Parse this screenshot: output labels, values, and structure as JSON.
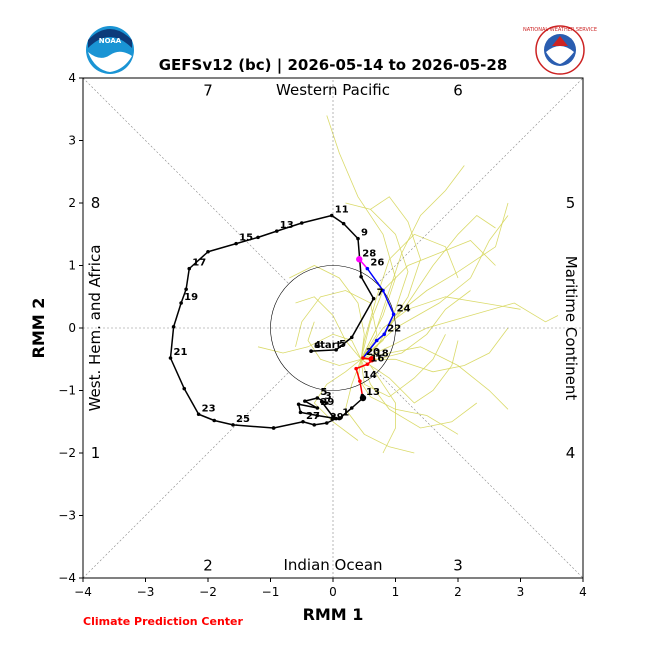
{
  "header": {
    "title": "GEFSv12 (bc) | 2026-05-14 to 2026-05-28",
    "left_logo": "noaa-logo",
    "left_logo_text": "NOAA",
    "right_logo": "national-weather-service-logo",
    "right_logo_text": "NATIONAL WEATHER SERVICE"
  },
  "footer": {
    "credit": "Climate Prediction Center",
    "credit_color": "#ff0000"
  },
  "chart_data": {
    "type": "line",
    "title": "GEFSv12 (bc) | 2026-05-14 to 2026-05-28",
    "xlabel": "RMM 1",
    "ylabel": "RMM 2",
    "xlim": [
      -4,
      4
    ],
    "ylim": [
      -4,
      4
    ],
    "xticks": [
      "−4",
      "−3",
      "−2",
      "−1",
      "0",
      "1",
      "2",
      "3",
      "4"
    ],
    "yticks": [
      "−4",
      "−3",
      "−2",
      "−1",
      "0",
      "1",
      "2",
      "3",
      "4"
    ],
    "unit_circle_radius": 1,
    "region_labels": {
      "top": "Western Pacific",
      "bottom": "Indian Ocean",
      "left": "West. Hem. and Africa",
      "right": "Maritime Continent"
    },
    "phase_labels": [
      {
        "phase": "1",
        "x": -3.8,
        "y": -2.0
      },
      {
        "phase": "2",
        "x": -2.0,
        "y": -3.8
      },
      {
        "phase": "3",
        "x": 2.0,
        "y": -3.8
      },
      {
        "phase": "4",
        "x": 3.8,
        "y": -2.0
      },
      {
        "phase": "5",
        "x": 3.8,
        "y": 2.0
      },
      {
        "phase": "6",
        "x": 2.0,
        "y": 3.8
      },
      {
        "phase": "7",
        "x": -2.0,
        "y": 3.8
      },
      {
        "phase": "8",
        "x": -3.8,
        "y": 2.0
      }
    ],
    "observed": {
      "color": "#000000",
      "points": [
        {
          "x": -0.35,
          "y": -0.37,
          "label": "start"
        },
        {
          "x": -0.35,
          "y": -0.37,
          "label": "4"
        },
        {
          "x": 0.05,
          "y": -0.35,
          "label": "5"
        },
        {
          "x": 0.3,
          "y": -0.15
        },
        {
          "x": 0.65,
          "y": 0.47,
          "label": "7"
        },
        {
          "x": 0.45,
          "y": 0.82
        },
        {
          "x": 0.4,
          "y": 1.43,
          "label": "9"
        },
        {
          "x": 0.17,
          "y": 1.67
        },
        {
          "x": -0.02,
          "y": 1.8,
          "label": "11"
        },
        {
          "x": -0.5,
          "y": 1.68
        },
        {
          "x": -0.9,
          "y": 1.55,
          "label": "13"
        },
        {
          "x": -1.2,
          "y": 1.45
        },
        {
          "x": -1.55,
          "y": 1.35,
          "label": "15"
        },
        {
          "x": -2.0,
          "y": 1.22
        },
        {
          "x": -2.3,
          "y": 0.95,
          "label": "17"
        },
        {
          "x": -2.35,
          "y": 0.62
        },
        {
          "x": -2.43,
          "y": 0.4,
          "label": "19"
        },
        {
          "x": -2.55,
          "y": 0.02
        },
        {
          "x": -2.6,
          "y": -0.48,
          "label": "21"
        },
        {
          "x": -2.38,
          "y": -0.97
        },
        {
          "x": -2.15,
          "y": -1.38,
          "label": "23"
        },
        {
          "x": -1.9,
          "y": -1.48
        },
        {
          "x": -1.6,
          "y": -1.55,
          "label": "25"
        },
        {
          "x": -0.95,
          "y": -1.6
        }
      ]
    },
    "forecast": {
      "points": [
        {
          "x": -0.95,
          "y": -1.6
        },
        {
          "x": -0.48,
          "y": -1.5,
          "label": "27"
        },
        {
          "x": -0.3,
          "y": -1.55
        },
        {
          "x": -0.1,
          "y": -1.52,
          "label": "29"
        },
        {
          "x": 0.05,
          "y": -1.45
        },
        {
          "x": -0.25,
          "y": -1.4
        },
        {
          "x": -0.52,
          "y": -1.35
        },
        {
          "x": -0.55,
          "y": -1.22
        },
        {
          "x": -0.25,
          "y": -1.28,
          "label": "29"
        },
        {
          "x": -0.45,
          "y": -1.17
        },
        {
          "x": -0.25,
          "y": -1.12,
          "label": "5"
        },
        {
          "x": -0.1,
          "y": -1.2
        },
        {
          "x": -0.18,
          "y": -1.18,
          "label": "3"
        },
        {
          "x": 0.0,
          "y": -1.42
        },
        {
          "x": 0.1,
          "y": -1.45,
          "label": "1"
        },
        {
          "x": 0.3,
          "y": -1.28
        },
        {
          "x": 0.48,
          "y": -1.12,
          "label": "13"
        },
        {
          "x": 0.47,
          "y": -1.08
        },
        {
          "x": 0.43,
          "y": -0.85,
          "label": "14"
        },
        {
          "x": 0.37,
          "y": -0.65
        },
        {
          "x": 0.55,
          "y": -0.58,
          "label": "16"
        },
        {
          "x": 0.65,
          "y": -0.5
        },
        {
          "x": 0.62,
          "y": -0.5,
          "label": "18"
        },
        {
          "x": 0.48,
          "y": -0.48,
          "label": "20"
        },
        {
          "x": 0.7,
          "y": -0.2
        },
        {
          "x": 0.82,
          "y": -0.1,
          "label": "22"
        },
        {
          "x": 0.97,
          "y": 0.22,
          "label": "24"
        },
        {
          "x": 0.8,
          "y": 0.6
        },
        {
          "x": 0.55,
          "y": 0.95,
          "label": "26"
        },
        {
          "x": 0.42,
          "y": 1.1,
          "label": "28"
        }
      ],
      "segment_colors": [
        "#000000",
        "#000000",
        "#000000",
        "#000000",
        "#000000",
        "#000000",
        "#000000",
        "#000000",
        "#000000",
        "#000000",
        "#000000",
        "#000000",
        "#000000",
        "#000000",
        "#000000",
        "#000000",
        "#000000",
        "#ff0000",
        "#ff0000",
        "#ff0000",
        "#ff0000",
        "#ff0000",
        "#ff0000",
        "#0000ff",
        "#0000ff",
        "#0000ff",
        "#0000ff",
        "#0000ff",
        "#ff00ff"
      ]
    },
    "ensemble": {
      "color": "#d6d65a",
      "members": [
        [
          [
            0.45,
            -0.5
          ],
          [
            0.8,
            -0.1
          ],
          [
            1.2,
            0.4
          ],
          [
            1.6,
            1.0
          ],
          [
            2.0,
            1.5
          ],
          [
            2.3,
            1.8
          ],
          [
            2.6,
            1.6
          ]
        ],
        [
          [
            0.45,
            -0.5
          ],
          [
            0.7,
            0.0
          ],
          [
            0.9,
            0.6
          ],
          [
            1.1,
            1.2
          ],
          [
            1.4,
            1.8
          ],
          [
            1.8,
            2.2
          ],
          [
            2.1,
            2.6
          ]
        ],
        [
          [
            0.45,
            -0.5
          ],
          [
            0.9,
            -0.3
          ],
          [
            1.5,
            0.0
          ],
          [
            2.2,
            0.2
          ],
          [
            2.9,
            0.4
          ],
          [
            3.4,
            0.1
          ],
          [
            3.6,
            0.2
          ]
        ],
        [
          [
            0.45,
            -0.5
          ],
          [
            1.0,
            -0.5
          ],
          [
            1.6,
            -0.7
          ],
          [
            2.1,
            -0.6
          ],
          [
            2.5,
            -0.4
          ],
          [
            2.8,
            0.0
          ]
        ],
        [
          [
            0.45,
            -0.5
          ],
          [
            0.6,
            -0.9
          ],
          [
            0.9,
            -1.3
          ],
          [
            1.4,
            -1.6
          ],
          [
            1.9,
            -1.5
          ],
          [
            2.3,
            -1.2
          ]
        ],
        [
          [
            0.45,
            -0.5
          ],
          [
            0.3,
            -0.9
          ],
          [
            0.2,
            -1.3
          ],
          [
            0.5,
            -1.7
          ],
          [
            0.9,
            -1.9
          ],
          [
            1.3,
            -2.0
          ]
        ],
        [
          [
            0.45,
            -0.5
          ],
          [
            0.1,
            -0.6
          ],
          [
            -0.2,
            -0.5
          ],
          [
            -0.4,
            -0.2
          ],
          [
            -0.3,
            0.1
          ]
        ],
        [
          [
            0.45,
            -0.5
          ],
          [
            0.2,
            -0.2
          ],
          [
            0.0,
            0.2
          ],
          [
            -0.3,
            0.5
          ],
          [
            -0.6,
            0.4
          ]
        ],
        [
          [
            0.45,
            -0.5
          ],
          [
            0.8,
            -0.2
          ],
          [
            1.0,
            0.3
          ],
          [
            1.2,
            0.9
          ],
          [
            1.0,
            1.5
          ],
          [
            0.6,
            1.9
          ],
          [
            0.2,
            2.0
          ]
        ],
        [
          [
            0.45,
            -0.5
          ],
          [
            0.5,
            -0.1
          ],
          [
            0.4,
            0.4
          ],
          [
            0.1,
            0.8
          ],
          [
            -0.3,
            1.0
          ],
          [
            -0.7,
            0.8
          ]
        ],
        [
          [
            0.45,
            -0.5
          ],
          [
            0.9,
            -0.8
          ],
          [
            1.3,
            -1.2
          ],
          [
            1.6,
            -1.0
          ],
          [
            1.9,
            -0.6
          ],
          [
            2.0,
            -0.2
          ]
        ],
        [
          [
            0.45,
            -0.5
          ],
          [
            0.7,
            -0.3
          ],
          [
            1.0,
            0.2
          ],
          [
            1.5,
            0.6
          ],
          [
            2.0,
            0.9
          ],
          [
            2.6,
            1.3
          ],
          [
            2.8,
            2.0
          ]
        ],
        [
          [
            0.45,
            -0.5
          ],
          [
            0.6,
            -0.6
          ],
          [
            0.8,
            -0.9
          ],
          [
            1.0,
            -1.2
          ],
          [
            1.0,
            -1.6
          ],
          [
            0.8,
            -2.0
          ]
        ],
        [
          [
            0.45,
            -0.5
          ],
          [
            0.5,
            -0.2
          ],
          [
            0.7,
            0.5
          ],
          [
            0.9,
            1.1
          ],
          [
            1.3,
            1.5
          ],
          [
            1.8,
            1.3
          ],
          [
            2.0,
            0.8
          ]
        ],
        [
          [
            0.45,
            -0.5
          ],
          [
            0.3,
            -0.2
          ],
          [
            0.0,
            -0.1
          ],
          [
            -0.4,
            -0.3
          ],
          [
            -0.8,
            -0.4
          ],
          [
            -1.2,
            -0.3
          ]
        ],
        [
          [
            0.45,
            -0.5
          ],
          [
            0.9,
            -0.4
          ],
          [
            1.4,
            -0.3
          ],
          [
            2.0,
            -0.6
          ],
          [
            2.5,
            -1.0
          ],
          [
            2.8,
            -1.3
          ]
        ],
        [
          [
            0.45,
            -0.5
          ],
          [
            0.8,
            0.2
          ],
          [
            1.0,
            0.8
          ],
          [
            0.8,
            1.5
          ],
          [
            0.4,
            2.1
          ],
          [
            0.1,
            2.8
          ],
          [
            -0.1,
            3.4
          ]
        ],
        [
          [
            0.45,
            -0.5
          ],
          [
            0.4,
            -0.8
          ],
          [
            0.6,
            -1.1
          ],
          [
            1.0,
            -1.3
          ],
          [
            1.5,
            -1.4
          ],
          [
            2.0,
            -1.7
          ]
        ],
        [
          [
            0.45,
            -0.5
          ],
          [
            0.7,
            -0.1
          ],
          [
            0.6,
            0.4
          ],
          [
            0.2,
            0.6
          ],
          [
            -0.2,
            0.5
          ],
          [
            -0.5,
            0.1
          ],
          [
            -0.6,
            -0.3
          ]
        ],
        [
          [
            0.45,
            -0.5
          ],
          [
            1.0,
            0.0
          ],
          [
            1.7,
            0.4
          ],
          [
            2.2,
            0.8
          ],
          [
            2.5,
            1.4
          ],
          [
            2.8,
            1.8
          ]
        ],
        [
          [
            0.45,
            -0.5
          ],
          [
            0.6,
            -0.3
          ],
          [
            0.8,
            0.0
          ],
          [
            1.2,
            0.3
          ],
          [
            1.8,
            0.5
          ],
          [
            2.4,
            0.4
          ],
          [
            3.0,
            0.3
          ]
        ],
        [
          [
            0.45,
            -0.5
          ],
          [
            0.5,
            -0.9
          ],
          [
            0.9,
            -1.1
          ],
          [
            1.3,
            -0.8
          ],
          [
            1.6,
            -0.5
          ],
          [
            1.8,
            -0.1
          ]
        ],
        [
          [
            0.45,
            -0.5
          ],
          [
            0.8,
            -0.1
          ],
          [
            1.2,
            0.5
          ],
          [
            1.4,
            1.1
          ],
          [
            1.2,
            1.7
          ],
          [
            0.9,
            2.1
          ],
          [
            0.6,
            1.9
          ]
        ],
        [
          [
            0.45,
            -0.5
          ],
          [
            0.2,
            -0.7
          ],
          [
            -0.1,
            -0.9
          ],
          [
            -0.3,
            -1.2
          ],
          [
            0.0,
            -1.5
          ],
          [
            0.4,
            -1.8
          ]
        ],
        [
          [
            0.45,
            -0.5
          ],
          [
            0.7,
            -0.5
          ],
          [
            1.1,
            -0.4
          ],
          [
            1.5,
            -0.1
          ],
          [
            1.8,
            0.3
          ],
          [
            2.2,
            0.6
          ]
        ],
        [
          [
            0.45,
            -0.5
          ],
          [
            0.6,
            0.1
          ],
          [
            0.8,
            0.6
          ],
          [
            1.2,
            1.0
          ],
          [
            1.7,
            1.2
          ],
          [
            2.2,
            1.4
          ],
          [
            2.6,
            1.0
          ]
        ]
      ]
    }
  }
}
